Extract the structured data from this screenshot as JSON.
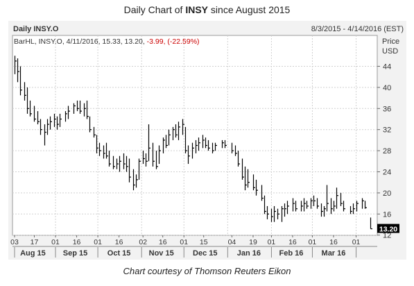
{
  "title": {
    "prefix": "Daily Chart of ",
    "ticker": "INSY",
    "suffix": " since August 2015"
  },
  "header": {
    "left": "Daily INSY.O",
    "right": "8/3/2015 - 4/14/2016 (EST)"
  },
  "legend": {
    "text": "BarHL, INSY.O, 4/11/2016, 15.33, 13.20,",
    "change": " -3.99, (-22.59%)",
    "change_color": "#cc0000"
  },
  "footer": "Chart courtesy of Thomson Reuters Eikon",
  "chart_data": {
    "type": "bar",
    "style": "OHLC bars (BarHL), daily",
    "x_range": [
      "2015-08-03",
      "2016-04-14"
    ],
    "ylabel": "Price USD",
    "ylim": [
      12,
      48
    ],
    "y_ticks": [
      12,
      16,
      20,
      24,
      28,
      32,
      36,
      40,
      44
    ],
    "last_price": "13.20",
    "colors": {
      "bars": "#000000",
      "grid": "#d0d0d0",
      "last_label_bg": "#000000",
      "last_label_fg": "#ffffff"
    },
    "x_day_ticks": [
      {
        "date": "2015-08-03",
        "label": "03"
      },
      {
        "date": "2015-08-17",
        "label": "17"
      },
      {
        "date": "2015-09-01",
        "label": "01"
      },
      {
        "date": "2015-09-16",
        "label": "16"
      },
      {
        "date": "2015-10-01",
        "label": "01"
      },
      {
        "date": "2015-10-16",
        "label": "16"
      },
      {
        "date": "2015-11-02",
        "label": "02"
      },
      {
        "date": "2015-11-16",
        "label": "16"
      },
      {
        "date": "2015-12-01",
        "label": "01"
      },
      {
        "date": "2015-12-15",
        "label": "15"
      },
      {
        "date": "2016-01-04",
        "label": "04"
      },
      {
        "date": "2016-01-19",
        "label": "19"
      },
      {
        "date": "2016-02-01",
        "label": "01"
      },
      {
        "date": "2016-02-16",
        "label": "16"
      },
      {
        "date": "2016-03-01",
        "label": "01"
      },
      {
        "date": "2016-03-16",
        "label": "16"
      },
      {
        "date": "2016-04-01",
        "label": "01"
      }
    ],
    "x_month_labels": [
      {
        "date": "2015-08-16",
        "label": "Aug 15"
      },
      {
        "date": "2015-09-15",
        "label": "Sep 15"
      },
      {
        "date": "2015-10-16",
        "label": "Oct 15"
      },
      {
        "date": "2015-11-15",
        "label": "Nov 15"
      },
      {
        "date": "2015-12-16",
        "label": "Dec 15"
      },
      {
        "date": "2016-01-16",
        "label": "Jan 16"
      },
      {
        "date": "2016-02-15",
        "label": "Feb 16"
      },
      {
        "date": "2016-03-16",
        "label": "Mar 16"
      }
    ],
    "month_starts": [
      "2015-09-01",
      "2015-10-01",
      "2015-11-01",
      "2015-12-01",
      "2016-01-01",
      "2016-02-01",
      "2016-03-01",
      "2016-04-01"
    ],
    "series": [
      {
        "bars": [
          {
            "date": "2015-08-03",
            "high": 46.0,
            "low": 42.5,
            "close": 45.0
          },
          {
            "date": "2015-08-05",
            "high": 45.5,
            "low": 41.0,
            "close": 43.0
          },
          {
            "date": "2015-08-07",
            "high": 44.0,
            "low": 38.5,
            "close": 39.5
          },
          {
            "date": "2015-08-10",
            "high": 41.0,
            "low": 37.5,
            "close": 38.5
          },
          {
            "date": "2015-08-12",
            "high": 40.0,
            "low": 35.0,
            "close": 36.0
          },
          {
            "date": "2015-08-14",
            "high": 37.5,
            "low": 34.5,
            "close": 35.0
          },
          {
            "date": "2015-08-17",
            "high": 36.5,
            "low": 33.5,
            "close": 34.0
          },
          {
            "date": "2015-08-19",
            "high": 35.5,
            "low": 33.0,
            "close": 33.5
          },
          {
            "date": "2015-08-21",
            "high": 34.0,
            "low": 31.0,
            "close": 32.0
          },
          {
            "date": "2015-08-24",
            "high": 33.0,
            "low": 29.0,
            "close": 31.5
          },
          {
            "date": "2015-08-26",
            "high": 34.0,
            "low": 31.0,
            "close": 33.0
          },
          {
            "date": "2015-08-28",
            "high": 34.5,
            "low": 32.0,
            "close": 33.5
          },
          {
            "date": "2015-08-31",
            "high": 35.0,
            "low": 32.5,
            "close": 34.0
          },
          {
            "date": "2015-09-02",
            "high": 34.5,
            "low": 32.0,
            "close": 33.0
          },
          {
            "date": "2015-09-04",
            "high": 35.0,
            "low": 32.5,
            "close": 34.0
          },
          {
            "date": "2015-09-08",
            "high": 35.5,
            "low": 33.5,
            "close": 35.0
          },
          {
            "date": "2015-09-10",
            "high": 36.5,
            "low": 34.0,
            "close": 35.5
          },
          {
            "date": "2015-09-14",
            "high": 37.0,
            "low": 35.0,
            "close": 36.5
          },
          {
            "date": "2015-09-16",
            "high": 37.5,
            "low": 35.5,
            "close": 36.0
          },
          {
            "date": "2015-09-18",
            "high": 37.5,
            "low": 35.0,
            "close": 35.5
          },
          {
            "date": "2015-09-21",
            "high": 37.0,
            "low": 34.5,
            "close": 36.0
          },
          {
            "date": "2015-09-23",
            "high": 37.5,
            "low": 34.0,
            "close": 34.5
          },
          {
            "date": "2015-09-25",
            "high": 34.5,
            "low": 31.5,
            "close": 32.0
          },
          {
            "date": "2015-09-28",
            "high": 32.5,
            "low": 30.5,
            "close": 31.0
          },
          {
            "date": "2015-09-30",
            "high": 31.0,
            "low": 27.5,
            "close": 28.5
          },
          {
            "date": "2015-10-02",
            "high": 29.5,
            "low": 27.0,
            "close": 28.0
          },
          {
            "date": "2015-10-05",
            "high": 29.0,
            "low": 26.5,
            "close": 27.5
          },
          {
            "date": "2015-10-07",
            "high": 29.5,
            "low": 26.5,
            "close": 27.0
          },
          {
            "date": "2015-10-09",
            "high": 28.0,
            "low": 25.0,
            "close": 25.5
          },
          {
            "date": "2015-10-12",
            "high": 27.0,
            "low": 24.5,
            "close": 25.0
          },
          {
            "date": "2015-10-14",
            "high": 26.5,
            "low": 24.5,
            "close": 25.5
          },
          {
            "date": "2015-10-16",
            "high": 27.0,
            "low": 24.0,
            "close": 26.0
          },
          {
            "date": "2015-10-19",
            "high": 27.5,
            "low": 24.5,
            "close": 25.5
          },
          {
            "date": "2015-10-21",
            "high": 27.0,
            "low": 24.0,
            "close": 25.0
          },
          {
            "date": "2015-10-23",
            "high": 26.5,
            "low": 22.0,
            "close": 23.0
          },
          {
            "date": "2015-10-26",
            "high": 24.5,
            "low": 20.5,
            "close": 21.5
          },
          {
            "date": "2015-10-28",
            "high": 23.5,
            "low": 21.0,
            "close": 22.5
          },
          {
            "date": "2015-10-30",
            "high": 26.5,
            "low": 22.5,
            "close": 26.0
          },
          {
            "date": "2015-11-02",
            "high": 28.0,
            "low": 25.5,
            "close": 26.5
          },
          {
            "date": "2015-11-04",
            "high": 27.5,
            "low": 25.0,
            "close": 26.0
          },
          {
            "date": "2015-11-06",
            "high": 33.0,
            "low": 26.0,
            "close": 28.5
          },
          {
            "date": "2015-11-09",
            "high": 29.5,
            "low": 25.0,
            "close": 26.0
          },
          {
            "date": "2015-11-11",
            "high": 28.0,
            "low": 24.5,
            "close": 25.0
          },
          {
            "date": "2015-11-13",
            "high": 29.0,
            "low": 25.5,
            "close": 28.0
          },
          {
            "date": "2015-11-16",
            "high": 30.5,
            "low": 27.5,
            "close": 30.0
          },
          {
            "date": "2015-11-18",
            "high": 31.0,
            "low": 28.5,
            "close": 29.0
          },
          {
            "date": "2015-11-20",
            "high": 32.0,
            "low": 29.0,
            "close": 31.0
          },
          {
            "date": "2015-11-23",
            "high": 32.5,
            "low": 30.0,
            "close": 32.0
          },
          {
            "date": "2015-11-25",
            "high": 33.0,
            "low": 30.5,
            "close": 31.0
          },
          {
            "date": "2015-11-27",
            "high": 33.5,
            "low": 30.0,
            "close": 32.5
          },
          {
            "date": "2015-11-30",
            "high": 34.0,
            "low": 31.0,
            "close": 33.0
          },
          {
            "date": "2015-12-02",
            "high": 32.5,
            "low": 27.5,
            "close": 28.0
          },
          {
            "date": "2015-12-04",
            "high": 29.0,
            "low": 25.5,
            "close": 27.0
          },
          {
            "date": "2015-12-07",
            "high": 29.5,
            "low": 26.5,
            "close": 28.5
          },
          {
            "date": "2015-12-09",
            "high": 30.0,
            "low": 27.5,
            "close": 29.0
          },
          {
            "date": "2015-12-11",
            "high": 30.5,
            "low": 28.0,
            "close": 29.5
          },
          {
            "date": "2015-12-14",
            "high": 31.0,
            "low": 28.5,
            "close": 30.0
          },
          {
            "date": "2015-12-16",
            "high": 30.5,
            "low": 28.5,
            "close": 29.0
          },
          {
            "date": "2015-12-18",
            "high": 30.0,
            "low": 28.0,
            "close": 28.5
          },
          {
            "date": "2015-12-21",
            "high": 29.5,
            "low": 27.5,
            "close": 28.0
          },
          {
            "date": "2015-12-23",
            "high": 29.5,
            "low": 28.0,
            "close": 29.0
          },
          {
            "date": "2015-12-28",
            "high": 30.0,
            "low": 28.5,
            "close": 29.5
          },
          {
            "date": "2015-12-30",
            "high": 30.0,
            "low": 28.5,
            "close": 29.0
          },
          {
            "date": "2016-01-04",
            "high": 29.5,
            "low": 27.5,
            "close": 28.0
          },
          {
            "date": "2016-01-06",
            "high": 29.0,
            "low": 27.0,
            "close": 27.5
          },
          {
            "date": "2016-01-08",
            "high": 28.0,
            "low": 25.0,
            "close": 25.5
          },
          {
            "date": "2016-01-11",
            "high": 26.5,
            "low": 22.5,
            "close": 23.0
          },
          {
            "date": "2016-01-13",
            "high": 25.0,
            "low": 20.5,
            "close": 21.5
          },
          {
            "date": "2016-01-15",
            "high": 24.5,
            "low": 21.0,
            "close": 22.0
          },
          {
            "date": "2016-01-19",
            "high": 23.5,
            "low": 20.5,
            "close": 21.0
          },
          {
            "date": "2016-01-21",
            "high": 22.5,
            "low": 19.5,
            "close": 20.5
          },
          {
            "date": "2016-01-25",
            "high": 21.5,
            "low": 18.5,
            "close": 19.0
          },
          {
            "date": "2016-01-27",
            "high": 19.5,
            "low": 16.0,
            "close": 16.5
          },
          {
            "date": "2016-01-29",
            "high": 17.5,
            "low": 15.0,
            "close": 16.0
          },
          {
            "date": "2016-02-01",
            "high": 17.0,
            "low": 14.5,
            "close": 15.5
          },
          {
            "date": "2016-02-03",
            "high": 17.5,
            "low": 14.5,
            "close": 16.5
          },
          {
            "date": "2016-02-05",
            "high": 17.0,
            "low": 15.0,
            "close": 16.0
          },
          {
            "date": "2016-02-08",
            "high": 17.5,
            "low": 14.5,
            "close": 17.0
          },
          {
            "date": "2016-02-10",
            "high": 18.0,
            "low": 15.5,
            "close": 17.0
          },
          {
            "date": "2016-02-12",
            "high": 18.5,
            "low": 16.0,
            "close": 17.5
          },
          {
            "date": "2016-02-16",
            "high": 19.0,
            "low": 16.5,
            "close": 18.0
          },
          {
            "date": "2016-02-18",
            "high": 18.5,
            "low": 16.5,
            "close": 17.0
          },
          {
            "date": "2016-02-22",
            "high": 18.5,
            "low": 16.5,
            "close": 17.5
          },
          {
            "date": "2016-02-24",
            "high": 19.0,
            "low": 16.5,
            "close": 18.0
          },
          {
            "date": "2016-02-26",
            "high": 18.5,
            "low": 17.0,
            "close": 17.5
          },
          {
            "date": "2016-02-29",
            "high": 19.0,
            "low": 17.0,
            "close": 18.5
          },
          {
            "date": "2016-03-02",
            "high": 19.5,
            "low": 17.5,
            "close": 18.5
          },
          {
            "date": "2016-03-04",
            "high": 19.0,
            "low": 17.0,
            "close": 17.5
          },
          {
            "date": "2016-03-07",
            "high": 18.0,
            "low": 15.5,
            "close": 16.5
          },
          {
            "date": "2016-03-09",
            "high": 17.5,
            "low": 15.5,
            "close": 17.0
          },
          {
            "date": "2016-03-11",
            "high": 21.5,
            "low": 16.5,
            "close": 18.0
          },
          {
            "date": "2016-03-14",
            "high": 19.0,
            "low": 16.0,
            "close": 17.0
          },
          {
            "date": "2016-03-16",
            "high": 18.5,
            "low": 16.5,
            "close": 17.5
          },
          {
            "date": "2016-03-18",
            "high": 21.0,
            "low": 17.0,
            "close": 19.5
          },
          {
            "date": "2016-03-21",
            "high": 20.0,
            "low": 17.5,
            "close": 18.0
          },
          {
            "date": "2016-03-23",
            "high": 18.5,
            "low": 16.5,
            "close": 17.0
          },
          {
            "date": "2016-03-28",
            "high": 17.5,
            "low": 16.0,
            "close": 16.5
          },
          {
            "date": "2016-03-30",
            "high": 18.0,
            "low": 16.0,
            "close": 17.0
          },
          {
            "date": "2016-04-01",
            "high": 18.5,
            "low": 16.5,
            "close": 18.0
          },
          {
            "date": "2016-04-05",
            "high": 19.0,
            "low": 17.0,
            "close": 18.5
          },
          {
            "date": "2016-04-07",
            "high": 18.5,
            "low": 17.0,
            "close": 17.2
          },
          {
            "date": "2016-04-11",
            "high": 15.33,
            "low": 13.2,
            "close": 13.2
          }
        ]
      }
    ]
  }
}
